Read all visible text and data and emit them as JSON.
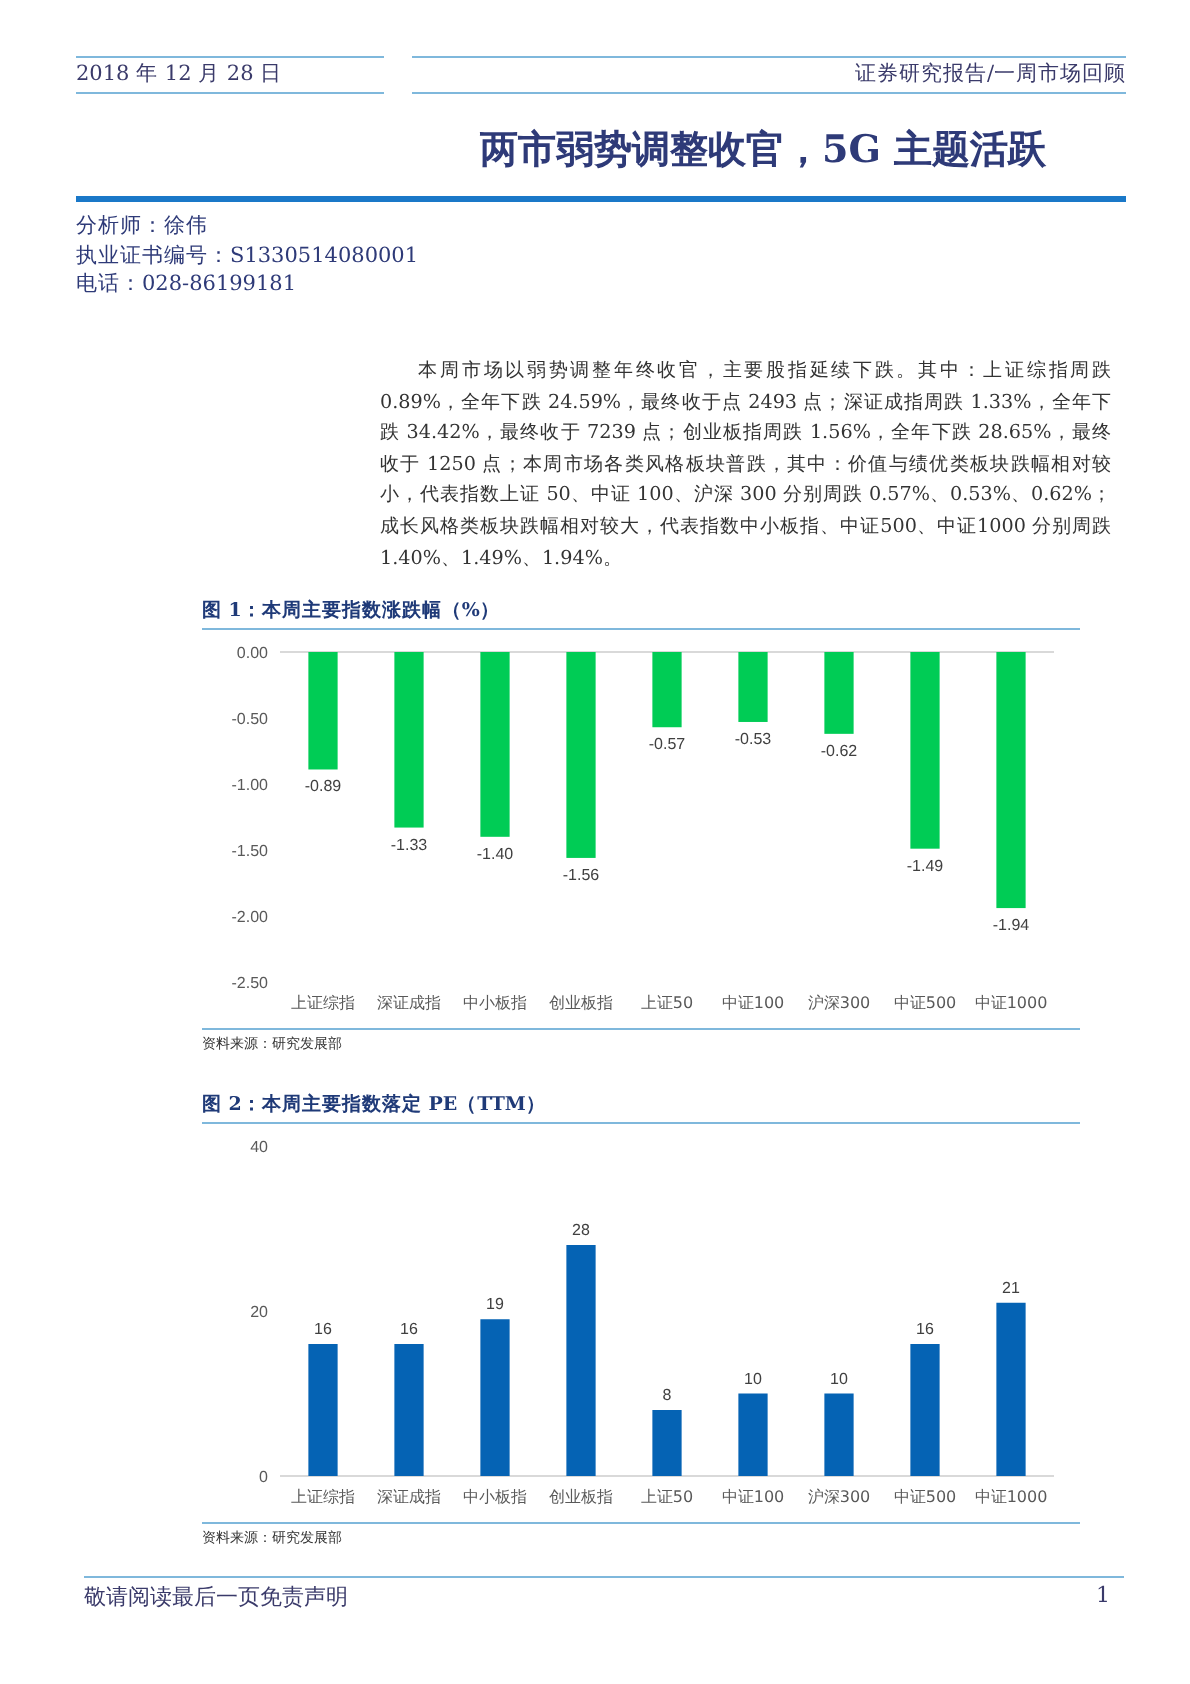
{
  "chart_data": [
    {
      "type": "other",
      "title": "两市弱势调整收官，5G 主题活跃",
      "annotations": [
        "2018 年 12 月 28 日",
        "证券研究报告/一周市场回顾",
        "分析师：徐伟",
        "执业证书编号：S1330514080001",
        "电话：028-86199181",
        "本周市场以弱势调整年终收官，主要股指延续下跌。其中：上证综指周跌 0.89%，全年下跌 24.59%，最终收于点 2493 点；深证成指周跌 1.33%，全年下跌 34.42%，最终收于 7239 点；创业板指周跌 1.56%，全年下跌 28.65%，最终收于 1250 点；本周市场各类风格板块普跌，其中：价值与绩优类板块跌幅相对较小，代表指数上证 50、中证 100、沪深 300 分别周跌 0.57%、0.53%、0.62%；成长风格类板块跌幅相对较大，代表指数中小板指、中证500、中证1000 分别周跌 1.40%、1.49%、1.94%。"
      ]
    },
    {
      "type": "bar",
      "title": "图 1：本周主要指数涨跌幅（%）",
      "categories": [
        "上证综指",
        "深证成指",
        "中小板指",
        "创业板指",
        "上证50",
        "中证100",
        "沪深300",
        "中证500",
        "中证1000"
      ],
      "values": [
        -0.89,
        -1.33,
        -1.4,
        -1.56,
        -0.57,
        -0.53,
        -0.62,
        -1.49,
        -1.94
      ],
      "value_labels": [
        "-0.89",
        "-1.33",
        "-1.40",
        "-1.56",
        "-0.57",
        "-0.53",
        "-0.62",
        "-1.49",
        "-1.94"
      ],
      "color": "#00cc55",
      "ylim": [
        -2.5,
        0
      ],
      "yticks": [
        {
          "value": -2.5,
          "label": "-2.50"
        },
        {
          "value": -2.0,
          "label": "-2.00"
        },
        {
          "value": -1.5,
          "label": "-1.50"
        },
        {
          "value": -1.0,
          "label": "-1.00"
        },
        {
          "value": -0.5,
          "label": "-0.50"
        },
        {
          "value": 0,
          "label": "0.00"
        }
      ],
      "annotations": [
        "资料来源：研究发展部"
      ]
    },
    {
      "type": "bar",
      "title": "图 2：本周主要指数落定 PE（TTM）",
      "categories": [
        "上证综指",
        "深证成指",
        "中小板指",
        "创业板指",
        "上证50",
        "中证100",
        "沪深300",
        "中证500",
        "中证1000"
      ],
      "values": [
        16,
        16,
        19,
        28,
        8,
        10,
        10,
        16,
        21
      ],
      "data_labels": true,
      "color": "#0563b4",
      "ylim": [
        0,
        40
      ],
      "yticks": [
        0,
        20,
        40
      ],
      "annotations": [
        "资料来源：研究发展部"
      ]
    },
    {
      "type": "other",
      "annotations": [
        "敬请阅读最后一页免责声明",
        "1"
      ]
    }
  ]
}
